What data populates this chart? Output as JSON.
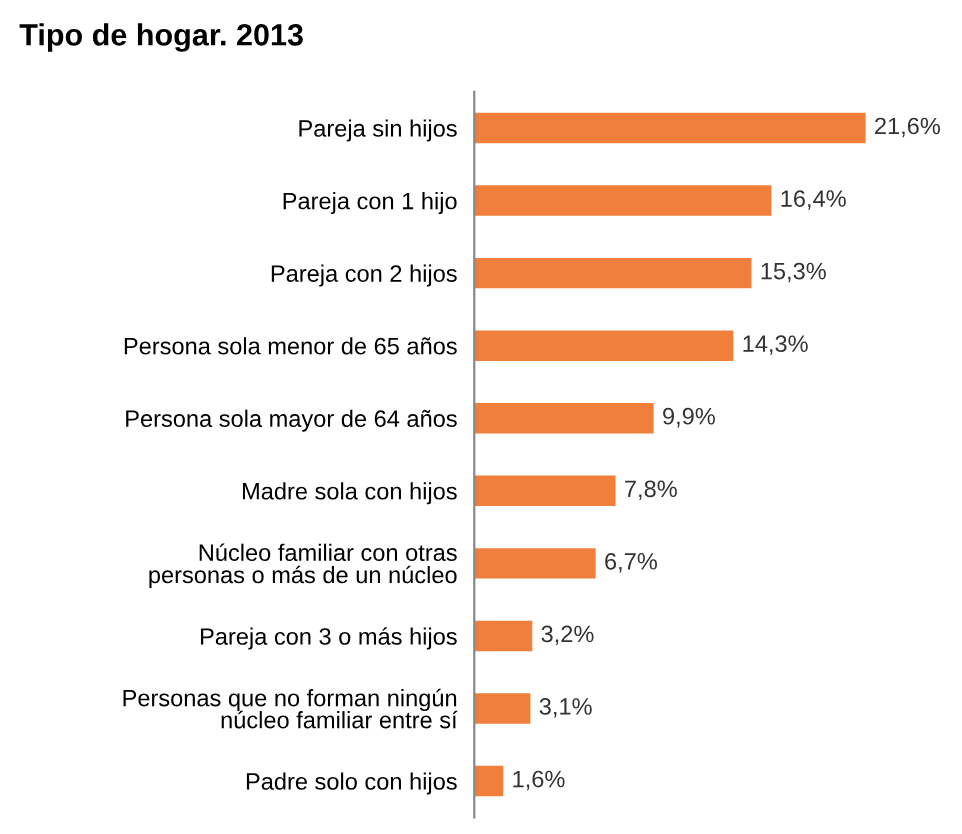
{
  "chart_data": {
    "type": "bar",
    "orientation": "horizontal",
    "title": "Tipo de hogar. 2013",
    "categories": [
      "Pareja sin hijos",
      "Pareja con 1 hijo",
      "Pareja con 2 hijos",
      "Persona sola menor de 65 años",
      "Persona sola mayor de 64 años",
      "Madre sola con hijos",
      "Núcleo familiar con otras\npersonas o más de un núcleo",
      "Pareja con 3 o más hijos",
      "Personas que no forman ningún\nnúcleo familiar entre sí",
      "Padre solo con hijos"
    ],
    "values": [
      21.6,
      16.4,
      15.3,
      14.3,
      9.9,
      7.8,
      6.7,
      3.2,
      3.1,
      1.6
    ],
    "value_labels": [
      "21,6%",
      "16,4%",
      "15,3%",
      "14,3%",
      "9,9%",
      "7,8%",
      "6,7%",
      "3,2%",
      "3,1%",
      "1,6%"
    ],
    "color": "#f07f3c",
    "grid": false,
    "legend": false
  }
}
